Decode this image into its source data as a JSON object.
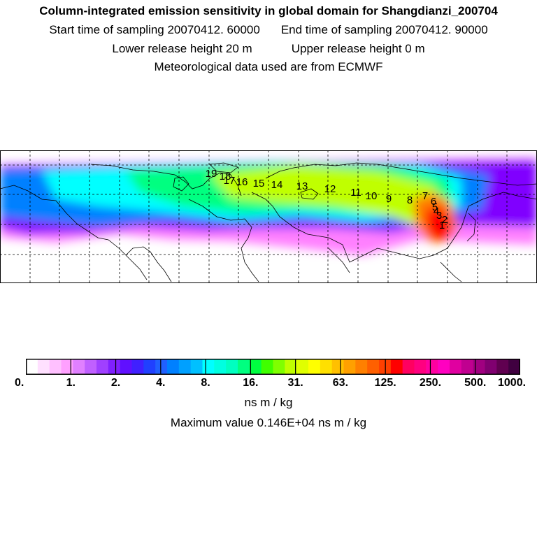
{
  "header": {
    "title": "Column-integrated emission sensitivity in global domain for Shangdianzi_200704",
    "start_label": "Start time of sampling 20070412. 60000",
    "end_label": "End time of sampling 20070412. 90000",
    "lower_label": "Lower release height   20 m",
    "upper_label": "Upper release height    0 m",
    "met_label": "Meteorological data used are from ECMWF"
  },
  "map": {
    "markers": [
      "1",
      "2",
      "3",
      "4",
      "5",
      "6",
      "7",
      "8",
      "9",
      "10",
      "11",
      "12",
      "13",
      "14",
      "15",
      "16",
      "17",
      "18",
      "19"
    ],
    "colors": {
      "low": "#ff80ff",
      "mid_purple": "#8000ff",
      "blue": "#0080ff",
      "cyan": "#00ffff",
      "green": "#00ff80",
      "yellow_green": "#c0ff00",
      "orange": "#ff8000",
      "red": "#ff0000"
    }
  },
  "colorbar": {
    "colors": [
      "#ffffff",
      "#ffe0ff",
      "#ffc0ff",
      "#ffa0ff",
      "#e080ff",
      "#c060ff",
      "#a040ff",
      "#8020ff",
      "#6010ff",
      "#4020ff",
      "#2040ff",
      "#2060ff",
      "#0080ff",
      "#00a0ff",
      "#00c0ff",
      "#00ffff",
      "#00ffe0",
      "#00ffc0",
      "#00ff80",
      "#00ff40",
      "#40ff00",
      "#80ff00",
      "#c0ff00",
      "#e0ff00",
      "#ffff00",
      "#ffe000",
      "#ffc000",
      "#ffa000",
      "#ff8000",
      "#ff6000",
      "#ff4000",
      "#ff0000",
      "#ff0060",
      "#ff0080",
      "#ff00a0",
      "#ff00c0",
      "#e000a0",
      "#c00090",
      "#a00080",
      "#800070",
      "#600050",
      "#400040"
    ],
    "ticks": [
      "0.",
      "1.",
      "2.",
      "4.",
      "8.",
      "16.",
      "31.",
      "63.",
      "125.",
      "250.",
      "500.",
      "1000."
    ],
    "units": "ns m / kg",
    "max_label": "Maximum value  0.146E+04 ns m / kg"
  }
}
